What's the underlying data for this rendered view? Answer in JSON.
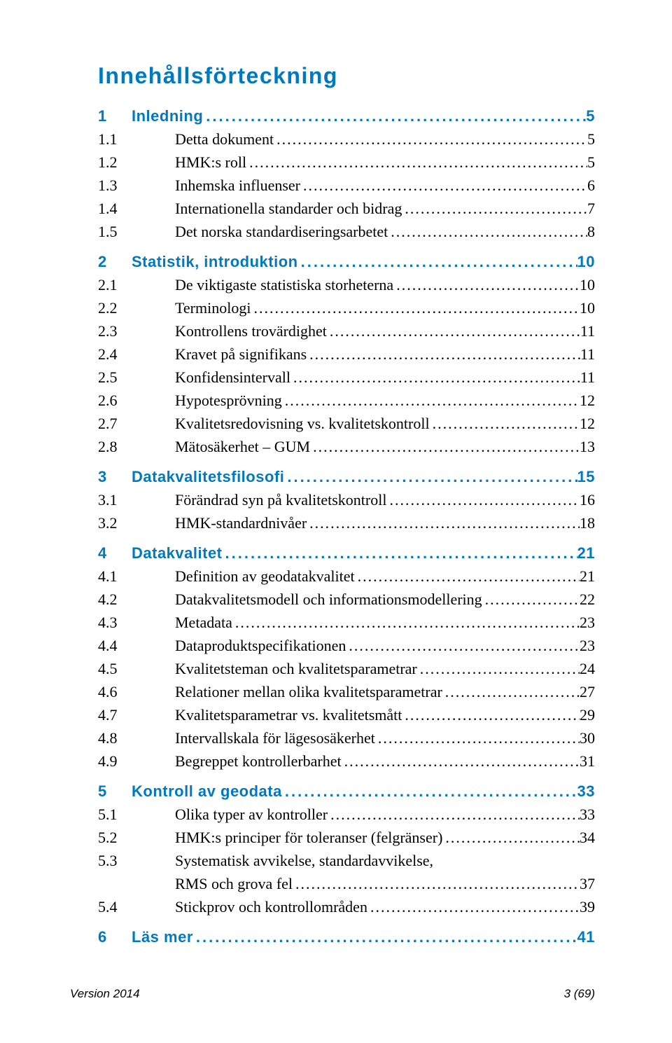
{
  "title": "Innehållsförteckning",
  "colors": {
    "accent": "#0079c1",
    "text": "#000000",
    "background": "#ffffff"
  },
  "font_sizes": {
    "title": 32,
    "section": 22,
    "sub": 22,
    "footer": 17
  },
  "toc": [
    {
      "type": "section",
      "num": "1",
      "label": "Inledning",
      "page": "5"
    },
    {
      "type": "sub",
      "num": "1.1",
      "label": "Detta dokument",
      "page": "5"
    },
    {
      "type": "sub",
      "num": "1.2",
      "label": "HMK:s roll",
      "page": "5"
    },
    {
      "type": "sub",
      "num": "1.3",
      "label": "Inhemska influenser",
      "page": "6"
    },
    {
      "type": "sub",
      "num": "1.4",
      "label": "Internationella standarder och bidrag",
      "page": "7"
    },
    {
      "type": "sub",
      "num": "1.5",
      "label": "Det norska standardiseringsarbetet",
      "page": "8"
    },
    {
      "type": "section",
      "num": "2",
      "label": "Statistik, introduktion",
      "page": "10"
    },
    {
      "type": "sub",
      "num": "2.1",
      "label": "De viktigaste statistiska storheterna",
      "page": "10"
    },
    {
      "type": "sub",
      "num": "2.2",
      "label": "Terminologi",
      "page": "10"
    },
    {
      "type": "sub",
      "num": "2.3",
      "label": "Kontrollens trovärdighet",
      "page": "11"
    },
    {
      "type": "sub",
      "num": "2.4",
      "label": "Kravet på signifikans",
      "page": "11"
    },
    {
      "type": "sub",
      "num": "2.5",
      "label": "Konfidensintervall",
      "page": "11"
    },
    {
      "type": "sub",
      "num": "2.6",
      "label": "Hypotesprövning",
      "page": "12"
    },
    {
      "type": "sub",
      "num": "2.7",
      "label": "Kvalitetsredovisning vs. kvalitetskontroll",
      "page": "12"
    },
    {
      "type": "sub",
      "num": "2.8",
      "label": "Mätosäkerhet – GUM",
      "page": "13"
    },
    {
      "type": "section",
      "num": "3",
      "label": "Datakvalitetsfilosofi",
      "page": "15"
    },
    {
      "type": "sub",
      "num": "3.1",
      "label": "Förändrad syn på kvalitetskontroll",
      "page": "16"
    },
    {
      "type": "sub",
      "num": "3.2",
      "label": "HMK-standardnivåer",
      "page": "18"
    },
    {
      "type": "section",
      "num": "4",
      "label": "Datakvalitet",
      "page": "21"
    },
    {
      "type": "sub",
      "num": "4.1",
      "label": "Definition av geodatakvalitet",
      "page": "21"
    },
    {
      "type": "sub",
      "num": "4.2",
      "label": "Datakvalitetsmodell och informationsmodellering",
      "page": "22"
    },
    {
      "type": "sub",
      "num": "4.3",
      "label": "Metadata",
      "page": "23"
    },
    {
      "type": "sub",
      "num": "4.4",
      "label": "Dataproduktspecifikationen",
      "page": "23"
    },
    {
      "type": "sub",
      "num": "4.5",
      "label": "Kvalitetsteman och kvalitetsparametrar",
      "page": "24"
    },
    {
      "type": "sub",
      "num": "4.6",
      "label": "Relationer mellan olika kvalitetsparametrar",
      "page": "27"
    },
    {
      "type": "sub",
      "num": "4.7",
      "label": "Kvalitetsparametrar vs. kvalitetsmått",
      "page": "29"
    },
    {
      "type": "sub",
      "num": "4.8",
      "label": "Intervallskala för lägesosäkerhet",
      "page": "30"
    },
    {
      "type": "sub",
      "num": "4.9",
      "label": "Begreppet kontrollerbarhet",
      "page": "31"
    },
    {
      "type": "section",
      "num": "5",
      "label": "Kontroll av geodata",
      "page": "33"
    },
    {
      "type": "sub",
      "num": "5.1",
      "label": "Olika typer av kontroller",
      "page": "33"
    },
    {
      "type": "sub",
      "num": "5.2",
      "label": "HMK:s principer för toleranser (felgränser)",
      "page": "34"
    },
    {
      "type": "sub",
      "num": "5.3",
      "label": "Systematisk avvikelse, standardavvikelse,",
      "page": ""
    },
    {
      "type": "cont",
      "num": "",
      "label": "RMS och grova fel",
      "page": "37"
    },
    {
      "type": "sub",
      "num": "5.4",
      "label": "Stickprov och kontrollområden",
      "page": "39"
    },
    {
      "type": "section",
      "num": "6",
      "label": "Läs mer",
      "page": "41"
    }
  ],
  "footer": {
    "left": "Version 2014",
    "right": "3 (69)"
  }
}
